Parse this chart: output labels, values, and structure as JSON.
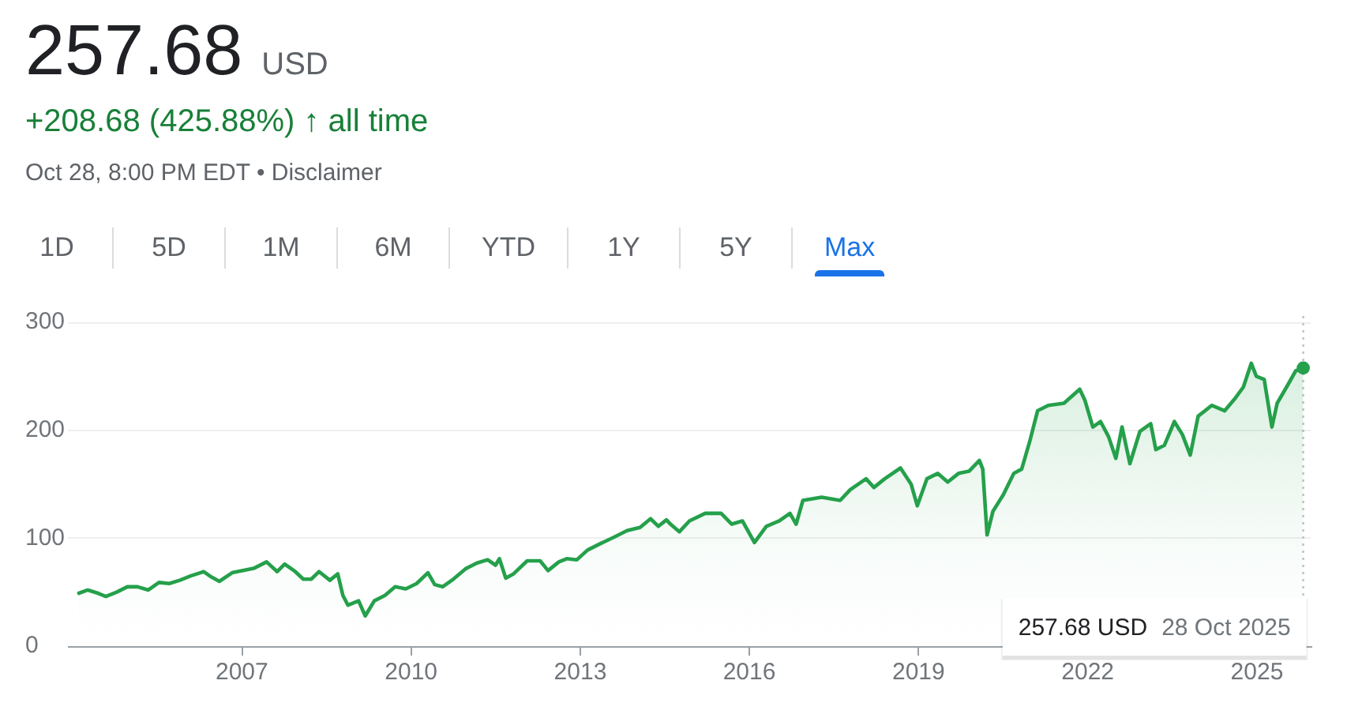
{
  "chart_data": {
    "type": "area",
    "title": "257.68 USD",
    "subtitle": "+208.68 (425.88%) ↑ all time",
    "annotations": [
      "Oct 28, 8:00 PM EDT • Disclaimer",
      "1D",
      "5D",
      "1M",
      "6M",
      "YTD",
      "1Y",
      "5Y",
      "Max",
      "257.68 USD",
      "28 Oct 2025"
    ],
    "x": [
      "2004-02-10",
      "2004-04-08",
      "2004-06-13",
      "2004-08-03",
      "2004-10-12",
      "2004-12-20",
      "2005-02-24",
      "2005-05-05",
      "2005-07-13",
      "2005-09-17",
      "2005-11-25",
      "2006-02-03",
      "2006-04-28",
      "2006-06-18",
      "2006-08-08",
      "2006-10-30",
      "2007-01-08",
      "2007-03-18",
      "2007-06-10",
      "2007-08-18",
      "2007-10-05",
      "2007-12-13",
      "2008-02-03",
      "2008-03-25",
      "2008-05-15",
      "2008-07-24",
      "2008-09-13",
      "2008-10-16",
      "2008-11-18",
      "2009-01-26",
      "2009-03-10",
      "2009-05-08",
      "2009-07-16",
      "2009-09-20",
      "2009-11-28",
      "2010-02-06",
      "2010-04-20",
      "2010-06-03",
      "2010-07-24",
      "2010-10-01",
      "2010-12-24",
      "2011-03-04",
      "2011-05-12",
      "2011-07-02",
      "2011-07-27",
      "2011-09-06",
      "2011-10-27",
      "2012-01-23",
      "2012-04-16",
      "2012-06-06",
      "2012-08-15",
      "2012-10-05",
      "2012-12-10",
      "2013-02-17",
      "2013-05-12",
      "2013-08-08",
      "2013-10-31",
      "2014-01-23",
      "2014-04-01",
      "2014-05-22",
      "2014-07-13",
      "2014-08-08",
      "2014-10-05",
      "2014-12-09",
      "2015-03-21",
      "2015-07-02",
      "2015-09-09",
      "2015-11-17",
      "2016-02-03",
      "2016-04-20",
      "2016-07-13",
      "2016-09-20",
      "2016-10-30",
      "2016-12-13",
      "2017-04-13",
      "2017-08-11",
      "2017-10-16",
      "2018-01-26",
      "2018-03-18",
      "2018-05-27",
      "2018-09-06",
      "2018-11-14",
      "2018-12-24",
      "2019-02-24",
      "2019-05-05",
      "2019-07-09",
      "2019-09-17",
      "2019-11-24",
      "2020-01-30",
      "2020-02-21",
      "2020-03-20",
      "2020-04-27",
      "2020-07-02",
      "2020-09-09",
      "2020-10-30",
      "2020-12-20",
      "2021-02-10",
      "2021-04-20",
      "2021-07-31",
      "2021-11-10",
      "2021-12-13",
      "2022-02-03",
      "2022-03-25",
      "2022-05-16",
      "2022-07-02",
      "2022-08-11",
      "2022-10-01",
      "2022-12-05",
      "2023-02-13",
      "2023-03-18",
      "2023-05-12",
      "2023-07-16",
      "2023-09-06",
      "2023-10-27",
      "2023-12-17",
      "2024-03-14",
      "2024-06-06",
      "2024-08-15",
      "2024-10-05",
      "2024-11-25",
      "2024-12-28",
      "2025-02-17",
      "2025-04-08",
      "2025-05-12",
      "2025-07-20",
      "2025-09-09",
      "2025-10-28"
    ],
    "values": [
      49,
      52,
      49,
      46,
      50,
      55,
      55,
      52,
      59,
      58,
      61,
      65,
      69,
      64,
      60,
      68,
      70,
      72,
      78,
      69,
      76,
      69,
      62,
      62,
      69,
      61,
      67,
      47,
      38,
      42,
      28,
      42,
      47,
      55,
      53,
      58,
      68,
      57,
      55,
      62,
      72,
      77,
      80,
      75,
      81,
      63,
      67,
      79,
      79,
      70,
      78,
      81,
      80,
      89,
      95,
      101,
      107,
      110,
      118,
      111,
      117,
      113,
      106,
      116,
      123,
      123,
      113,
      116,
      96,
      111,
      116,
      123,
      113,
      135,
      138,
      135,
      145,
      155,
      147,
      155,
      165,
      150,
      130,
      155,
      160,
      152,
      160,
      162,
      172,
      164,
      103,
      125,
      140,
      160,
      164,
      189,
      218,
      223,
      225,
      238,
      228,
      203,
      208,
      194,
      174,
      203,
      169,
      199,
      206,
      182,
      186,
      208,
      196,
      177,
      213,
      223,
      218,
      230,
      240,
      262,
      250,
      247,
      203,
      225,
      242,
      255,
      257.68
    ],
    "color": "#25a04b",
    "xlim": [
      "2003-12-01",
      "2025-12-15"
    ],
    "xticks": [
      "2007",
      "2010",
      "2013",
      "2016",
      "2019",
      "2022",
      "2025"
    ],
    "ylim": [
      0,
      300
    ],
    "yticks": [
      0,
      100,
      200,
      300
    ],
    "grid": "y",
    "ref_lines": [
      {
        "axis": "x",
        "value": "2025-10-28",
        "color": "#bdc1c6",
        "line_style": "dotted"
      }
    ]
  }
}
